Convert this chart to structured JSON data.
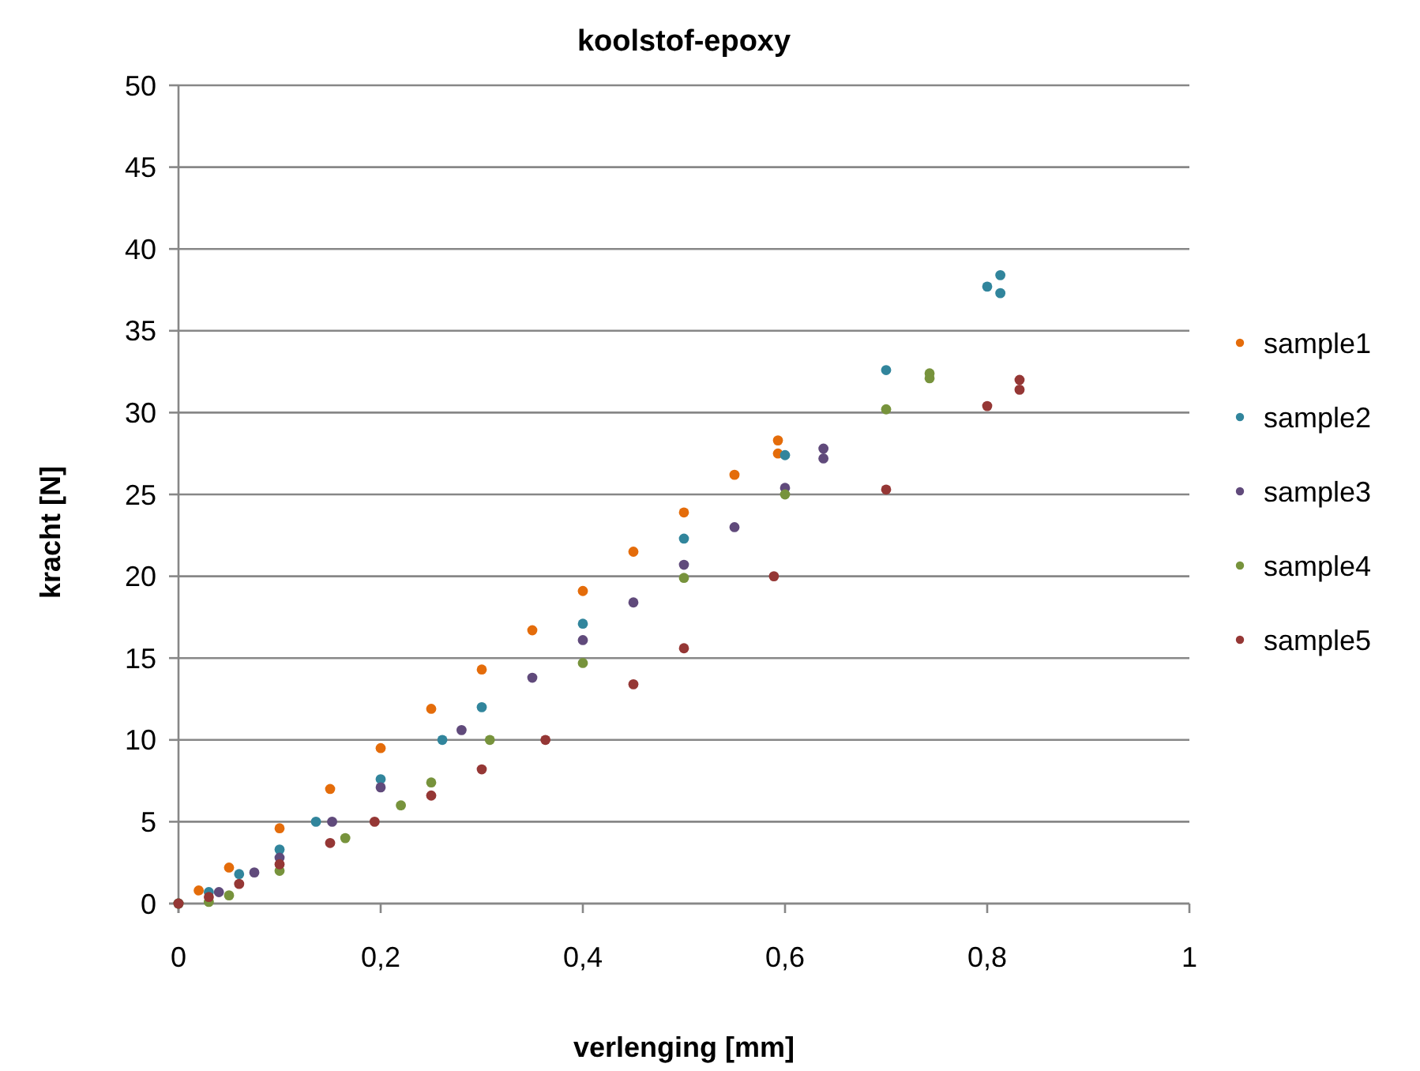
{
  "chart_data": {
    "type": "scatter",
    "title": "koolstof-epoxy",
    "xlabel": "verlenging [mm]",
    "ylabel": "kracht [N]",
    "marker": "circle",
    "grid": "y",
    "legend": "right",
    "xlim": [
      0,
      1
    ],
    "xticks": [
      0,
      {
        "value": 0.2,
        "label": "0,2"
      },
      {
        "value": 0.4,
        "label": "0,4"
      },
      {
        "value": 0.6,
        "label": "0,6"
      },
      {
        "value": 0.8,
        "label": "0,8"
      },
      1
    ],
    "ylim": [
      0,
      50
    ],
    "yticks": [
      0,
      5,
      10,
      15,
      20,
      25,
      30,
      35,
      40,
      45,
      50
    ],
    "series": [
      {
        "name": "sample1",
        "color": "#e46c0a",
        "x": [
          0,
          0.02,
          0.05,
          0.1,
          0.15,
          0.2,
          0.25,
          0.3,
          0.35,
          0.4,
          0.45,
          0.5,
          0.55,
          0.593,
          0.593
        ],
        "values": [
          0,
          0.8,
          2.2,
          4.6,
          7.0,
          9.5,
          11.9,
          14.3,
          16.7,
          19.1,
          21.5,
          23.9,
          26.2,
          28.3,
          27.5
        ]
      },
      {
        "name": "sample2",
        "color": "#31859c",
        "x": [
          0,
          0.03,
          0.06,
          0.1,
          0.136,
          0.2,
          0.261,
          0.3,
          0.4,
          0.5,
          0.6,
          0.7,
          0.8,
          0.813,
          0.813
        ],
        "values": [
          0,
          0.7,
          1.8,
          3.3,
          5,
          7.6,
          10,
          12,
          17.1,
          22.3,
          27.4,
          32.6,
          37.7,
          38.4,
          37.3
        ]
      },
      {
        "name": "sample3",
        "color": "#604a7b",
        "x": [
          0,
          0.04,
          0.075,
          0.1,
          0.152,
          0.2,
          0.28,
          0.35,
          0.4,
          0.45,
          0.5,
          0.55,
          0.6,
          0.638,
          0.638
        ],
        "values": [
          0,
          0.7,
          1.9,
          2.8,
          5,
          7.1,
          10.6,
          13.8,
          16.1,
          18.4,
          20.7,
          23.0,
          25.4,
          27.8,
          27.2
        ]
      },
      {
        "name": "sample4",
        "color": "#77933c",
        "x": [
          0,
          0.03,
          0.05,
          0.1,
          0.165,
          0.22,
          0.25,
          0.308,
          0.4,
          0.5,
          0.6,
          0.7,
          0.743,
          0.743
        ],
        "values": [
          0,
          0.1,
          0.5,
          2.0,
          4.0,
          6.0,
          7.4,
          10,
          14.7,
          19.9,
          25.0,
          30.2,
          32.4,
          32.1
        ]
      },
      {
        "name": "sample5",
        "color": "#953735",
        "x": [
          0,
          0.03,
          0.06,
          0.1,
          0.15,
          0.194,
          0.25,
          0.3,
          0.363,
          0.45,
          0.5,
          0.589,
          0.7,
          0.8,
          0.832,
          0.832
        ],
        "values": [
          0,
          0.4,
          1.2,
          2.4,
          3.7,
          5,
          6.6,
          8.2,
          10,
          13.4,
          15.6,
          20,
          25.3,
          30.4,
          32.0,
          31.4
        ]
      }
    ]
  }
}
